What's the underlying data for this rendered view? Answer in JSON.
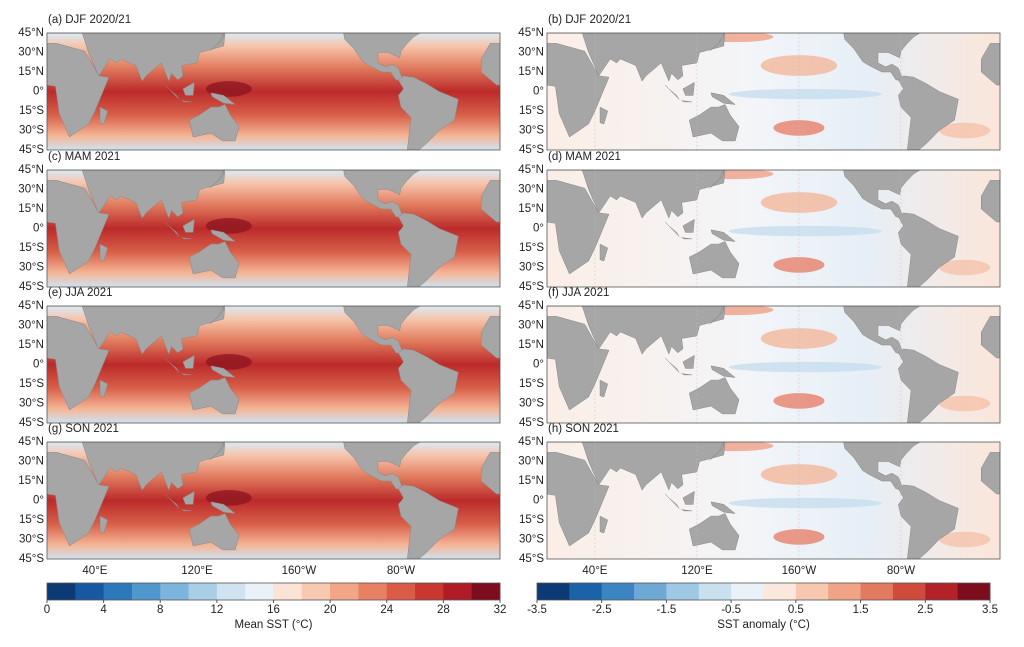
{
  "panels": [
    {
      "title": "(a) DJF 2020/21"
    },
    {
      "title": "(b) DJF 2020/21"
    },
    {
      "title": "(c) MAM 2021"
    },
    {
      "title": "(d) MAM 2021"
    },
    {
      "title": "(e) JJA 2021"
    },
    {
      "title": "(f) JJA 2021"
    },
    {
      "title": "(g) SON 2021"
    },
    {
      "title": "(h) SON 2021"
    }
  ],
  "lat_labels": [
    "45°N",
    "30°N",
    "15°N",
    "0°",
    "15°S",
    "30°S",
    "45°S"
  ],
  "lon_labels": [
    "40°E",
    "120°E",
    "160°W",
    "80°W"
  ],
  "colorbars": [
    {
      "label": "Mean SST (°C)",
      "ticks": [
        0,
        4,
        8,
        12,
        16,
        20,
        24,
        28,
        32
      ],
      "colors": [
        "#0b3a75",
        "#1659a2",
        "#2b78ba",
        "#4f97cc",
        "#7db4dc",
        "#a9cfe7",
        "#cfe3f0",
        "#eaf2f8",
        "#fbe3d6",
        "#f8c9b0",
        "#f2a687",
        "#e88063",
        "#db5b47",
        "#c9372f",
        "#b01c25",
        "#7d0d1c"
      ]
    },
    {
      "label": "SST anomaly (°C)",
      "ticks": [
        -3.5,
        -2.5,
        -1.5,
        -0.5,
        0.5,
        1.5,
        2.5,
        3.5
      ],
      "colors": [
        "#0b3a75",
        "#1c62a9",
        "#3b86c2",
        "#6ea9d6",
        "#9fc8e4",
        "#c9e0ef",
        "#e9f2f8",
        "#fbe8dd",
        "#f7c8b0",
        "#f0a386",
        "#e27a5f",
        "#cf4c3d",
        "#b22228",
        "#7d0d1c"
      ]
    }
  ]
}
